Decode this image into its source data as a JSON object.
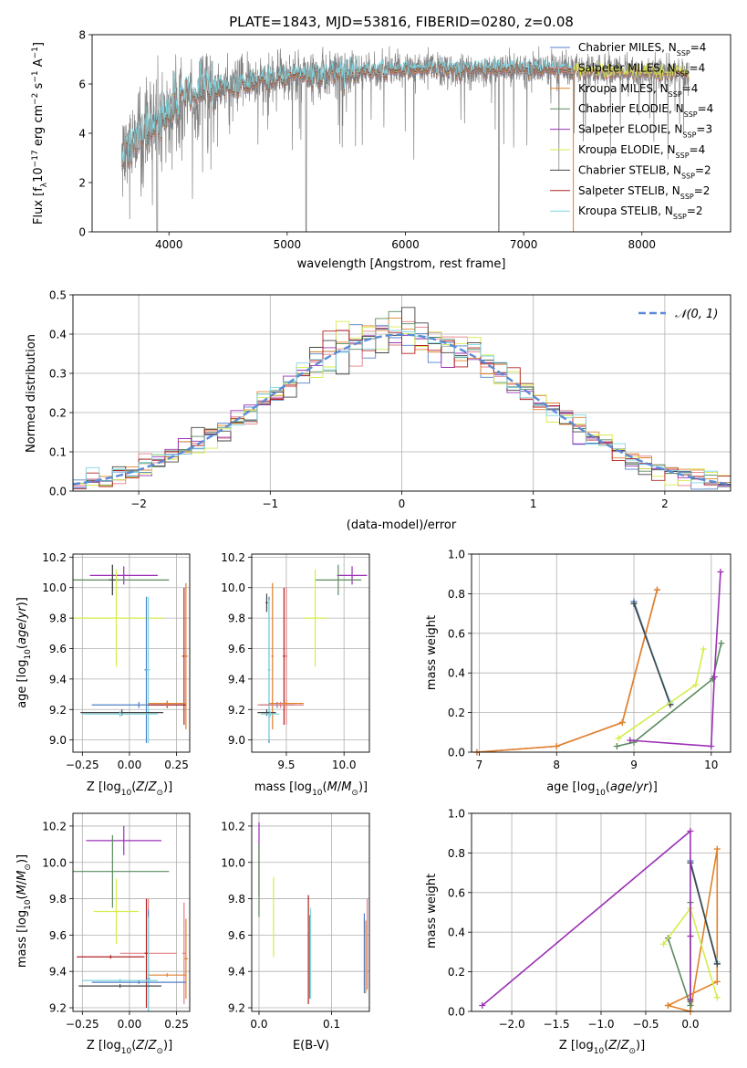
{
  "chart_data": [
    {
      "id": "spectrum",
      "type": "line",
      "title": "PLATE=1843, MJD=53816, FIBERID=0280, z=0.08",
      "xlabel": "wavelength [Angstrom, rest frame]",
      "ylabel_parts": {
        "pre": "Flux [f",
        "sub": "λ",
        "mid": "10",
        "sup1": "−17",
        "mid2": " erg cm",
        "sup2": "−2",
        "mid3": " s",
        "sup3": "−1",
        "mid4": " A",
        "sup4": "−1",
        "post": "]"
      },
      "xlim": [
        3350,
        8750
      ],
      "ylim": [
        0,
        8
      ],
      "xticks": [
        4000,
        5000,
        6000,
        7000,
        8000
      ],
      "yticks": [
        0,
        2,
        4,
        6,
        8
      ],
      "legend_position": "upper right",
      "legend": [
        {
          "name": "Chabrier MILES",
          "nssp": "4",
          "color": "#4f81c7"
        },
        {
          "name": "Salpeter MILES",
          "nssp": "4",
          "color": "#e47f86"
        },
        {
          "name": "Kroupa MILES",
          "nssp": "4",
          "color": "#e0822a"
        },
        {
          "name": "Chabrier ELODIE",
          "nssp": "4",
          "color": "#5a8a5e"
        },
        {
          "name": "Salpeter ELODIE",
          "nssp": "3",
          "color": "#9b30b5"
        },
        {
          "name": "Kroupa ELODIE",
          "nssp": "4",
          "color": "#d6ec4c"
        },
        {
          "name": "Chabrier STELIB",
          "nssp": "2",
          "color": "#444444"
        },
        {
          "name": "Salpeter STELIB",
          "nssp": "2",
          "color": "#b22222"
        },
        {
          "name": "Kroupa STELIB",
          "nssp": "2",
          "color": "#7fd6e0"
        }
      ],
      "data_color": "#808080",
      "data_range": [
        3600,
        8400
      ],
      "continuum": [
        [
          3600,
          3.2
        ],
        [
          3800,
          4.0
        ],
        [
          4000,
          5.0
        ],
        [
          4300,
          5.8
        ],
        [
          5000,
          6.3
        ],
        [
          5500,
          6.5
        ],
        [
          6000,
          6.6
        ],
        [
          6500,
          6.6
        ],
        [
          7000,
          6.65
        ],
        [
          7500,
          6.55
        ],
        [
          8000,
          6.5
        ],
        [
          8400,
          6.45
        ]
      ]
    },
    {
      "id": "residuals",
      "type": "line",
      "xlabel": "(data-model)/error",
      "ylabel": "Normed distribution",
      "xlim": [
        -2.5,
        2.5
      ],
      "ylim": [
        0,
        0.5
      ],
      "xticks": [
        -2,
        -1,
        0,
        1,
        2
      ],
      "xtick_labels": [
        "−2",
        "−1",
        "0",
        "1",
        "2"
      ],
      "yticks": [
        0,
        0.1,
        0.2,
        0.3,
        0.4,
        0.5
      ],
      "ytick_labels": [
        "0.0",
        "0.1",
        "0.2",
        "0.3",
        "0.4",
        "0.5"
      ],
      "gaussian_label": "𝒩(0, 1)",
      "gaussian_color": "#5b8bd6"
    },
    {
      "id": "age_vs_Z",
      "type": "scatter",
      "xlabel_text": "Z [log",
      "xlabel_sub": "10",
      "xlabel_rest": "(Z/Z",
      "xlabel_sun": "⊙",
      "xlabel_end": ")]",
      "ylabel": "age  [log10(age/yr)]",
      "xlim": [
        -0.3,
        0.32
      ],
      "ylim": [
        8.92,
        10.22
      ],
      "xticks": [
        -0.25,
        0,
        0.25
      ],
      "xtick_labels": [
        "−0.25",
        "0.00",
        "0.25"
      ],
      "yticks": [
        9.0,
        9.2,
        9.4,
        9.6,
        9.8,
        10.0,
        10.2
      ],
      "ytick_labels": [
        "9.0",
        "9.2",
        "9.4",
        "9.6",
        "9.8",
        "10.0",
        "10.2"
      ],
      "points": [
        {
          "x": -0.03,
          "y": 10.08,
          "xerr": 0.18,
          "yerr": 0.06,
          "color": "#9b30b5"
        },
        {
          "x": -0.09,
          "y": 10.05,
          "xerr": 0.3,
          "yerr": 0.1,
          "color": "#5a8a5e"
        },
        {
          "x": -0.09,
          "y": 10.05,
          "xerr": 0.02,
          "yerr": 0.1,
          "color": "#444444"
        },
        {
          "x": -0.07,
          "y": 9.8,
          "xerr": 0.25,
          "yerr": 0.32,
          "color": "#d6ec4c"
        },
        {
          "x": 0.29,
          "y": 9.55,
          "xerr": 0.01,
          "yerr": 0.45,
          "color": "#b22222"
        },
        {
          "x": 0.3,
          "y": 9.55,
          "xerr": 0.01,
          "yerr": 0.48,
          "color": "#e0822a"
        },
        {
          "x": 0.09,
          "y": 9.46,
          "xerr": 0.01,
          "yerr": 0.48,
          "color": "#4f81c7"
        },
        {
          "x": 0.1,
          "y": 9.46,
          "xerr": 0.01,
          "yerr": 0.48,
          "color": "#7fd6e0"
        },
        {
          "x": 0.05,
          "y": 9.23,
          "xerr": 0.25,
          "yerr": 0.02,
          "color": "#4f81c7"
        },
        {
          "x": 0.2,
          "y": 9.23,
          "xerr": 0.1,
          "yerr": 0.02,
          "color": "#b22222"
        },
        {
          "x": 0.2,
          "y": 9.24,
          "xerr": 0.1,
          "yerr": 0.02,
          "color": "#e0822a"
        },
        {
          "x": -0.04,
          "y": 9.18,
          "xerr": 0.22,
          "yerr": 0.02,
          "color": "#444444"
        },
        {
          "x": -0.05,
          "y": 9.17,
          "xerr": 0.2,
          "yerr": 0.02,
          "color": "#7fd6e0"
        }
      ]
    },
    {
      "id": "age_vs_mass",
      "type": "scatter",
      "xlabel": "mass [log10(M/M☉)]",
      "xlim": [
        9.2,
        10.22
      ],
      "ylim": [
        8.92,
        10.22
      ],
      "xticks": [
        9.5,
        10.0
      ],
      "xtick_labels": [
        "9.5",
        "10.0"
      ],
      "yticks": [
        9.0,
        9.2,
        9.4,
        9.6,
        9.8,
        10.0,
        10.2
      ],
      "ytick_labels": [
        "9.0",
        "9.2",
        "9.4",
        "9.6",
        "9.8",
        "10.0",
        "10.2"
      ],
      "points": [
        {
          "x": 10.07,
          "y": 10.08,
          "xerr": 0.13,
          "yerr": 0.06,
          "color": "#9b30b5"
        },
        {
          "x": 9.95,
          "y": 10.05,
          "xerr": 0.2,
          "yerr": 0.1,
          "color": "#5a8a5e"
        },
        {
          "x": 9.33,
          "y": 9.9,
          "xerr": 0.01,
          "yerr": 0.06,
          "color": "#444444"
        },
        {
          "x": 9.75,
          "y": 9.8,
          "xerr": 0.1,
          "yerr": 0.32,
          "color": "#d6ec4c"
        },
        {
          "x": 9.48,
          "y": 9.55,
          "xerr": 0.01,
          "yerr": 0.45,
          "color": "#b22222"
        },
        {
          "x": 9.38,
          "y": 9.55,
          "xerr": 0.01,
          "yerr": 0.48,
          "color": "#e0822a"
        },
        {
          "x": 9.5,
          "y": 9.55,
          "xerr": 0.01,
          "yerr": 0.45,
          "color": "#e47f86"
        },
        {
          "x": 9.35,
          "y": 9.46,
          "xerr": 0.01,
          "yerr": 0.48,
          "color": "#4f81c7"
        },
        {
          "x": 9.35,
          "y": 9.46,
          "xerr": 0.01,
          "yerr": 0.46,
          "color": "#7fd6e0"
        },
        {
          "x": 9.42,
          "y": 9.23,
          "xerr": 0.15,
          "yerr": 0.02,
          "color": "#4f81c7"
        },
        {
          "x": 9.5,
          "y": 9.24,
          "xerr": 0.15,
          "yerr": 0.02,
          "color": "#e0822a"
        },
        {
          "x": 9.45,
          "y": 9.23,
          "xerr": 0.2,
          "yerr": 0.02,
          "color": "#e47f86"
        },
        {
          "x": 9.33,
          "y": 9.18,
          "xerr": 0.08,
          "yerr": 0.02,
          "color": "#444444"
        },
        {
          "x": 9.36,
          "y": 9.17,
          "xerr": 0.08,
          "yerr": 0.02,
          "color": "#7fd6e0"
        }
      ]
    },
    {
      "id": "mw_vs_age",
      "type": "line",
      "xlabel": "age  [log10(age/yr)]",
      "ylabel": "mass weight",
      "xlim": [
        6.9,
        10.25
      ],
      "ylim": [
        0,
        1
      ],
      "xticks": [
        7,
        8,
        9,
        10
      ],
      "xtick_labels": [
        "7",
        "8",
        "9",
        "10"
      ],
      "yticks": [
        0,
        0.2,
        0.4,
        0.6,
        0.8,
        1.0
      ],
      "ytick_labels": [
        "0.0",
        "0.2",
        "0.4",
        "0.6",
        "0.8",
        "1.0"
      ],
      "series": [
        {
          "color": "#e47f86",
          "x": [
            6.97,
            8.0,
            8.85,
            9.3
          ],
          "y": [
            0.0,
            0.03,
            0.15,
            0.82
          ]
        },
        {
          "color": "#e0822a",
          "x": [
            6.97,
            8.0,
            8.85,
            9.3
          ],
          "y": [
            0.0,
            0.03,
            0.15,
            0.82
          ]
        },
        {
          "color": "#4f81c7",
          "x": [
            9.0,
            9.47
          ],
          "y": [
            0.76,
            0.24
          ]
        },
        {
          "color": "#7fd6e0",
          "x": [
            9.0,
            9.47
          ],
          "y": [
            0.75,
            0.25
          ]
        },
        {
          "color": "#444444",
          "x": [
            9.0,
            9.47
          ],
          "y": [
            0.75,
            0.24
          ]
        },
        {
          "color": "#5a8a5e",
          "x": [
            8.78,
            9.0,
            10.02,
            10.13
          ],
          "y": [
            0.03,
            0.05,
            0.37,
            0.55
          ]
        },
        {
          "color": "#d6ec4c",
          "x": [
            8.8,
            9.8,
            9.9
          ],
          "y": [
            0.07,
            0.34,
            0.52
          ]
        },
        {
          "color": "#9b30b5",
          "x": [
            8.95,
            10.0,
            10.04,
            10.12
          ],
          "y": [
            0.06,
            0.03,
            0.38,
            0.91
          ]
        }
      ]
    },
    {
      "id": "mass_vs_Z",
      "type": "scatter",
      "ylabel": "mass [log10(M/M☉)]",
      "xlim": [
        -0.3,
        0.32
      ],
      "ylim": [
        9.18,
        10.27
      ],
      "xticks": [
        -0.25,
        0,
        0.25
      ],
      "xtick_labels": [
        "−0.25",
        "0.00",
        "0.25"
      ],
      "yticks": [
        9.2,
        9.4,
        9.6,
        9.8,
        10.0,
        10.2
      ],
      "ytick_labels": [
        "9.2",
        "9.4",
        "9.6",
        "9.8",
        "10.0",
        "10.2"
      ],
      "points": [
        {
          "x": -0.03,
          "y": 10.12,
          "xerr": 0.2,
          "yerr": 0.08,
          "color": "#9b30b5"
        },
        {
          "x": -0.09,
          "y": 9.95,
          "xerr": 0.3,
          "yerr": 0.2,
          "color": "#5a8a5e"
        },
        {
          "x": -0.07,
          "y": 9.73,
          "xerr": 0.12,
          "yerr": 0.18,
          "color": "#d6ec4c"
        },
        {
          "x": 0.1,
          "y": 9.5,
          "xerr": 0.15,
          "yerr": 0.3,
          "color": "#e47f86"
        },
        {
          "x": -0.1,
          "y": 9.48,
          "xerr": 0.18,
          "yerr": 0.01,
          "color": "#b22222"
        },
        {
          "x": 0.09,
          "y": 9.5,
          "xerr": 0.01,
          "yerr": 0.3,
          "color": "#b22222"
        },
        {
          "x": 0.29,
          "y": 9.5,
          "xerr": 0.01,
          "yerr": 0.28,
          "color": "#e47f86"
        },
        {
          "x": 0.3,
          "y": 9.47,
          "xerr": 0.01,
          "yerr": 0.22,
          "color": "#e0822a"
        },
        {
          "x": 0.2,
          "y": 9.38,
          "xerr": 0.1,
          "yerr": 0.01,
          "color": "#e0822a"
        },
        {
          "x": 0.1,
          "y": 9.36,
          "xerr": 0.01,
          "yerr": 0.38,
          "color": "#4f81c7"
        },
        {
          "x": 0.1,
          "y": 9.35,
          "xerr": 0.02,
          "yerr": 0.35,
          "color": "#7fd6e0"
        },
        {
          "x": -0.05,
          "y": 9.35,
          "xerr": 0.2,
          "yerr": 0.01,
          "color": "#7fd6e0"
        },
        {
          "x": 0.05,
          "y": 9.34,
          "xerr": 0.25,
          "yerr": 0.01,
          "color": "#4f81c7"
        },
        {
          "x": -0.05,
          "y": 9.32,
          "xerr": 0.22,
          "yerr": 0.01,
          "color": "#444444"
        }
      ]
    },
    {
      "id": "mass_vs_EBV",
      "type": "scatter",
      "xlabel": "E(B-V)",
      "xlim": [
        -0.01,
        0.152
      ],
      "ylim": [
        9.18,
        10.27
      ],
      "xticks": [
        0.0,
        0.1
      ],
      "xtick_labels": [
        "0.0",
        "0.1"
      ],
      "yticks": [
        9.2,
        9.4,
        9.6,
        9.8,
        10.0,
        10.2
      ],
      "ytick_labels": [
        "9.2",
        "9.4",
        "9.6",
        "9.8",
        "10.0",
        "10.2"
      ],
      "points": [
        {
          "x": 0.0,
          "y": 10.02,
          "xerr": 0.0,
          "yerr": 0.2,
          "color": "#9b30b5"
        },
        {
          "x": 0.0,
          "y": 9.9,
          "xerr": 0.0,
          "yerr": 0.2,
          "color": "#5a8a5e"
        },
        {
          "x": 0.02,
          "y": 9.7,
          "xerr": 0.0,
          "yerr": 0.22,
          "color": "#d6ec4c"
        },
        {
          "x": 0.068,
          "y": 9.52,
          "xerr": 0.0,
          "yerr": 0.3,
          "color": "#b22222"
        },
        {
          "x": 0.07,
          "y": 9.48,
          "xerr": 0.0,
          "yerr": 0.23,
          "color": "#5a8a5e"
        },
        {
          "x": 0.071,
          "y": 9.5,
          "xerr": 0.0,
          "yerr": 0.25,
          "color": "#7fd6e0"
        },
        {
          "x": 0.145,
          "y": 9.5,
          "xerr": 0.0,
          "yerr": 0.22,
          "color": "#4f81c7"
        },
        {
          "x": 0.147,
          "y": 9.48,
          "xerr": 0.0,
          "yerr": 0.2,
          "color": "#e0822a"
        },
        {
          "x": 0.149,
          "y": 9.55,
          "xerr": 0.0,
          "yerr": 0.25,
          "color": "#e47f86"
        }
      ]
    },
    {
      "id": "mw_vs_Z",
      "type": "line",
      "xlabel": "Z [log10(Z/Z☉)]",
      "ylabel": "mass weight",
      "xlim": [
        -2.45,
        0.45
      ],
      "ylim": [
        0,
        1
      ],
      "xticks": [
        -2.0,
        -1.5,
        -1.0,
        -0.5,
        0.0
      ],
      "xtick_labels": [
        "−2.0",
        "−1.5",
        "−1.0",
        "−0.5",
        "0.0"
      ],
      "yticks": [
        0,
        0.2,
        0.4,
        0.6,
        0.8,
        1.0
      ],
      "ytick_labels": [
        "0.0",
        "0.2",
        "0.4",
        "0.6",
        "0.8",
        "1.0"
      ],
      "series": [
        {
          "color": "#e0822a",
          "x": [
            -0.25,
            0.0,
            0.3,
            0.3,
            -0.25
          ],
          "y": [
            0.03,
            0.0,
            0.82,
            0.15,
            0.03
          ]
        },
        {
          "color": "#4f81c7",
          "x": [
            0.0,
            0.3
          ],
          "y": [
            0.76,
            0.24
          ]
        },
        {
          "color": "#7fd6e0",
          "x": [
            0.0,
            0.3
          ],
          "y": [
            0.75,
            0.25
          ]
        },
        {
          "color": "#444444",
          "x": [
            0.0,
            0.3
          ],
          "y": [
            0.75,
            0.24
          ]
        },
        {
          "color": "#5a8a5e",
          "x": [
            -0.25,
            0.0,
            0.0,
            0.0
          ],
          "y": [
            0.37,
            0.03,
            0.05,
            0.55
          ]
        },
        {
          "color": "#d6ec4c",
          "x": [
            -0.3,
            0.0,
            0.3
          ],
          "y": [
            0.34,
            0.52,
            0.07
          ]
        },
        {
          "color": "#9b30b5",
          "x": [
            -2.33,
            0.0,
            0.0,
            0.0
          ],
          "y": [
            0.03,
            0.91,
            0.38,
            0.06
          ]
        }
      ]
    }
  ]
}
